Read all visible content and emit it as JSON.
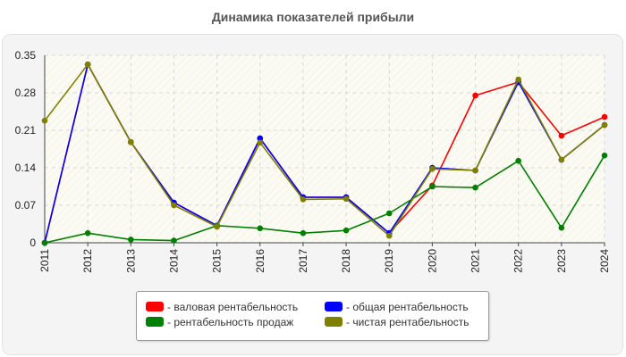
{
  "title": "Динамика показателей прибыли",
  "chart_data": {
    "type": "line",
    "title": "Динамика показателей прибыли",
    "xlabel": "",
    "ylabel": "",
    "ylim": [
      0,
      0.35
    ],
    "yticks": [
      "0",
      "0.07",
      "0.14",
      "0.21",
      "0.28",
      "0.35"
    ],
    "x": [
      "2011",
      "2012",
      "2013",
      "2014",
      "2015",
      "2016",
      "2017",
      "2018",
      "2019",
      "2020",
      "2021",
      "2022",
      "2023",
      "2024"
    ],
    "grid": true,
    "legend_position": "bottom",
    "series": [
      {
        "name": "- валовая рентабельность",
        "color": "#ff0000",
        "values": [
          0,
          0.333,
          0.188,
          0.075,
          0.032,
          0.195,
          0.085,
          0.085,
          0.018,
          0.107,
          0.275,
          0.3,
          0.2,
          0.235
        ]
      },
      {
        "name": "- общая рентабельность",
        "color": "#0000ff",
        "values": [
          0,
          0.333,
          0.188,
          0.075,
          0.032,
          0.195,
          0.085,
          0.085,
          0.018,
          0.14,
          0.135,
          0.3,
          0.155,
          0.22
        ]
      },
      {
        "name": "- рентабельность продаж",
        "color": "#008000",
        "values": [
          0,
          0.018,
          0.006,
          0.004,
          0.032,
          0.027,
          0.018,
          0.023,
          0.055,
          0.105,
          0.103,
          0.153,
          0.028,
          0.163
        ]
      },
      {
        "name": "- чистая рентабельность",
        "color": "#808000",
        "values": [
          0.228,
          0.333,
          0.188,
          0.07,
          0.03,
          0.187,
          0.081,
          0.082,
          0.013,
          0.138,
          0.135,
          0.305,
          0.155,
          0.22
        ]
      }
    ]
  }
}
